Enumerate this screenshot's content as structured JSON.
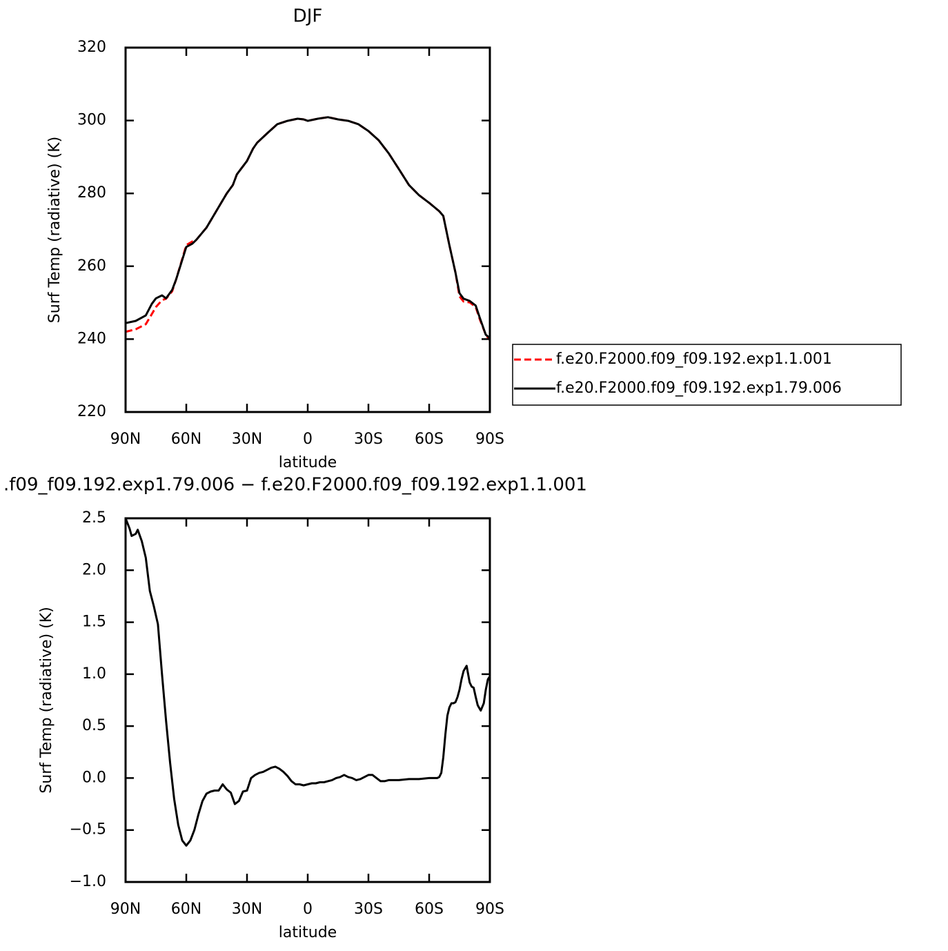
{
  "chart_data": [
    {
      "type": "line",
      "title": "DJF",
      "xlabel": "latitude",
      "ylabel": "Surf Temp (radiative) (K)",
      "x": [
        90,
        85,
        80,
        77,
        75,
        72,
        70,
        67,
        65,
        60,
        57,
        55,
        50,
        45,
        40,
        37,
        35,
        30,
        27,
        25,
        20,
        15,
        10,
        5,
        2,
        0,
        -5,
        -10,
        -15,
        -20,
        -25,
        -30,
        -35,
        -40,
        -45,
        -50,
        -55,
        -60,
        -65,
        -67,
        -70,
        -73,
        -75,
        -77,
        -80,
        -83,
        -85,
        -88,
        -90
      ],
      "series": [
        {
          "name": "f.e20.F2000.f09_f09.192.exp1.1.001",
          "color": "#ff0000",
          "dash": true,
          "values": [
            242.0,
            242.7,
            244.1,
            246.9,
            248.8,
            250.7,
            251.1,
            253.1,
            256.4,
            265.8,
            266.8,
            267.3,
            270.6,
            275.3,
            280.0,
            282.3,
            285.2,
            288.9,
            292.3,
            293.9,
            296.5,
            299.0,
            299.9,
            300.5,
            300.3,
            299.9,
            300.5,
            300.9,
            300.3,
            299.9,
            299.0,
            297.1,
            294.6,
            291.0,
            286.7,
            282.3,
            279.5,
            277.4,
            275.1,
            273.8,
            265.8,
            258.3,
            251.7,
            250.3,
            250.1,
            248.8,
            245.5,
            241.2,
            239.7
          ]
        },
        {
          "name": "f.e20.F2000.f09_f09.192.exp1.79.006",
          "color": "#000000",
          "dash": false,
          "values": [
            244.4,
            245.0,
            246.5,
            249.7,
            251.2,
            252.0,
            251.2,
            253.5,
            256.4,
            265.3,
            266.2,
            267.3,
            270.6,
            275.3,
            280.0,
            282.3,
            285.2,
            288.9,
            292.3,
            293.9,
            296.5,
            299.0,
            299.9,
            300.5,
            300.3,
            299.9,
            300.5,
            300.9,
            300.3,
            299.9,
            299.0,
            297.1,
            294.6,
            291.0,
            286.7,
            282.3,
            279.5,
            277.4,
            275.1,
            273.8,
            265.8,
            258.3,
            252.6,
            251.1,
            250.5,
            249.2,
            245.9,
            241.2,
            240.3
          ]
        }
      ],
      "xlim": [
        90,
        -90
      ],
      "xticks": [
        {
          "value": 90,
          "label": "90N"
        },
        {
          "value": 60,
          "label": "60N"
        },
        {
          "value": 30,
          "label": "30N"
        },
        0,
        {
          "value": -30,
          "label": "30S"
        },
        {
          "value": -60,
          "label": "60S"
        },
        {
          "value": -90,
          "label": "90S"
        }
      ],
      "ylim": [
        220,
        320
      ],
      "yticks": [
        220,
        240,
        260,
        280,
        300,
        320
      ],
      "legend": "right"
    },
    {
      "type": "line",
      "title": ".f09_f09.192.exp1.79.006 − f.e20.F2000.f09_f09.192.exp1.1.001",
      "xlabel": "latitude",
      "ylabel": "Surf Temp (radiative) (K)",
      "color": "#000000",
      "x": [
        90,
        88,
        87,
        85,
        84,
        82,
        80,
        78,
        76,
        74,
        72,
        70,
        68,
        66,
        64,
        62,
        60,
        58,
        56,
        54,
        52,
        50,
        48,
        46,
        44,
        42,
        40,
        38,
        36,
        34,
        32,
        30,
        28,
        26,
        24,
        22,
        20,
        18,
        16,
        14,
        12,
        10,
        8,
        6,
        4,
        2,
        0,
        -2,
        -4,
        -6,
        -8,
        -10,
        -12,
        -14,
        -16,
        -18,
        -20,
        -22,
        -24,
        -26,
        -28,
        -30,
        -32,
        -34,
        -36,
        -38,
        -40,
        -45,
        -50,
        -55,
        -60,
        -64,
        -65,
        -66,
        -67,
        -68,
        -69,
        -70,
        -71,
        -72,
        -73,
        -74,
        -75,
        -76,
        -77,
        -78.5,
        -80,
        -81,
        -82,
        -83,
        -84,
        -85.5,
        -87,
        -88,
        -89,
        -90
      ],
      "values": [
        2.5,
        2.4,
        2.33,
        2.35,
        2.39,
        2.28,
        2.12,
        1.8,
        1.65,
        1.48,
        1.0,
        0.55,
        0.15,
        -0.2,
        -0.45,
        -0.6,
        -0.65,
        -0.6,
        -0.5,
        -0.35,
        -0.22,
        -0.15,
        -0.13,
        -0.12,
        -0.12,
        -0.06,
        -0.11,
        -0.14,
        -0.25,
        -0.22,
        -0.13,
        -0.12,
        0.0,
        0.03,
        0.05,
        0.06,
        0.08,
        0.1,
        0.11,
        0.09,
        0.06,
        0.02,
        -0.03,
        -0.06,
        -0.06,
        -0.07,
        -0.06,
        -0.05,
        -0.05,
        -0.04,
        -0.04,
        -0.03,
        -0.02,
        0.0,
        0.01,
        0.03,
        0.01,
        0.0,
        -0.02,
        -0.01,
        0.01,
        0.03,
        0.03,
        0.0,
        -0.03,
        -0.03,
        -0.02,
        -0.02,
        -0.01,
        -0.01,
        0.0,
        0.0,
        0.01,
        0.05,
        0.2,
        0.42,
        0.6,
        0.68,
        0.72,
        0.72,
        0.73,
        0.78,
        0.85,
        0.95,
        1.03,
        1.08,
        0.92,
        0.88,
        0.87,
        0.78,
        0.7,
        0.65,
        0.72,
        0.85,
        0.95,
        0.98
      ],
      "xlim": [
        90,
        -90
      ],
      "xticks": [
        {
          "value": 90,
          "label": "90N"
        },
        {
          "value": 60,
          "label": "60N"
        },
        {
          "value": 30,
          "label": "30N"
        },
        0,
        {
          "value": -30,
          "label": "30S"
        },
        {
          "value": -60,
          "label": "60S"
        },
        {
          "value": -90,
          "label": "90S"
        }
      ],
      "ylim": [
        -1.0,
        2.5
      ],
      "yticks": [
        {
          "value": -1.0,
          "label": "−1.0"
        },
        {
          "value": -0.5,
          "label": "−0.5"
        },
        {
          "value": 0.0,
          "label": "0.0"
        },
        0.5,
        {
          "value": 1.0,
          "label": "1.0"
        },
        1.5,
        {
          "value": 2.0,
          "label": "2.0"
        },
        2.5
      ]
    }
  ]
}
